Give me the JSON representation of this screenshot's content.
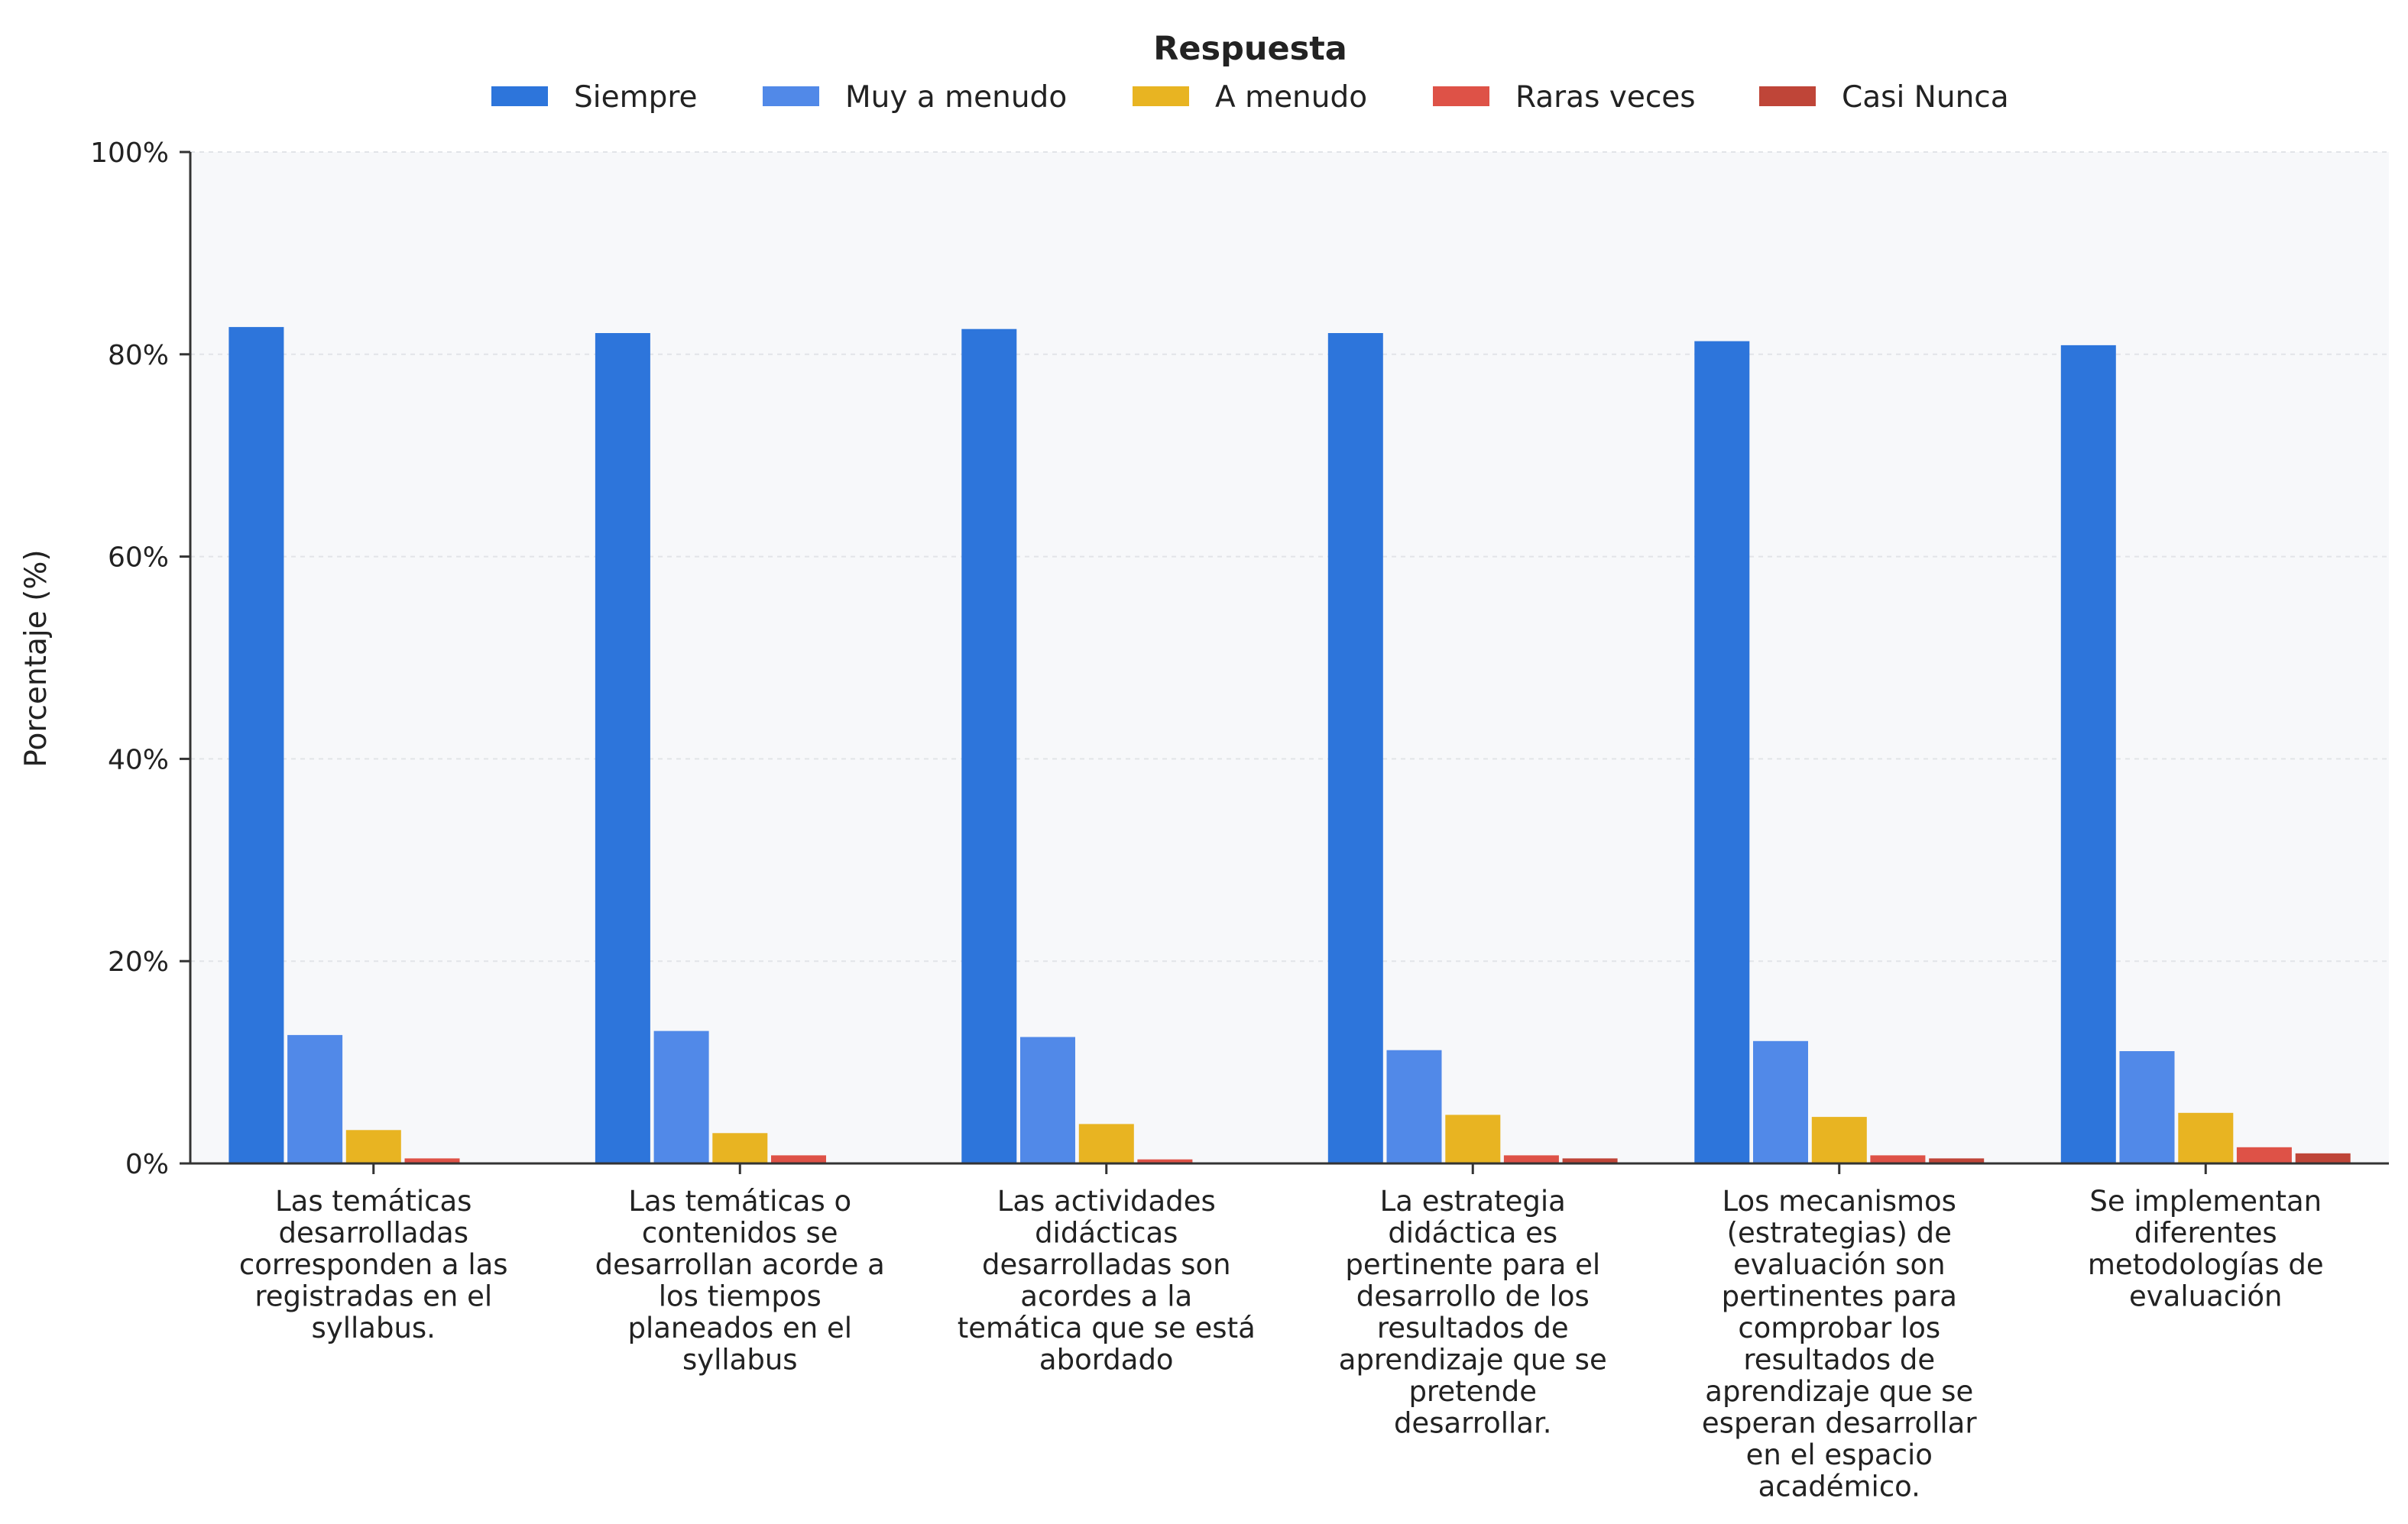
{
  "chart_data": {
    "type": "bar",
    "title": "",
    "xlabel": "",
    "ylabel": "Porcentaje (%)",
    "ylim": [
      0,
      100
    ],
    "y_ticks": [
      0,
      20,
      40,
      60,
      80,
      100
    ],
    "y_tick_format": "{v}%",
    "grid": true,
    "legend": {
      "title": "Respuesta",
      "placement": "top-center"
    },
    "categories": [
      "Las temáticas desarrolladas corresponden a las registradas en el syllabus.",
      "Las temáticas o contenidos se desarrollan acorde a los tiempos planeados en el syllabus",
      "Las actividades didácticas desarrolladas son acordes a la temática que se está abordado",
      "La estrategia didáctica es pertinente para el desarrollo de los resultados de aprendizaje que se pretende desarrollar.",
      "Los mecanismos (estrategias) de evaluación son pertinentes para comprobar los resultados de aprendizaje que se esperan desarrollar en el espacio académico.",
      "Se implementan diferentes metodologías de evaluación"
    ],
    "category_lines": [
      [
        "Las temáticas",
        "desarrolladas",
        "corresponden a las",
        "registradas en el",
        "syllabus."
      ],
      [
        "Las temáticas o",
        "contenidos se",
        "desarrollan acorde a",
        "los tiempos",
        "planeados en el",
        "syllabus"
      ],
      [
        "Las actividades",
        "didácticas",
        "desarrolladas son",
        "acordes a la",
        "temática que se está",
        "abordado"
      ],
      [
        "La estrategia",
        "didáctica es",
        "pertinente para el",
        "desarrollo de los",
        "resultados de",
        "aprendizaje que se",
        "pretende",
        "desarrollar."
      ],
      [
        "Los mecanismos",
        "(estrategias) de",
        "evaluación son",
        "pertinentes para",
        "comprobar los",
        "resultados de",
        "aprendizaje que se",
        "esperan desarrollar",
        "en el espacio",
        "académico."
      ],
      [
        "Se implementan",
        "diferentes",
        "metodologías de",
        "evaluación"
      ]
    ],
    "series": [
      {
        "name": "Siempre",
        "color": "#2D75DB",
        "values": [
          82.7,
          82.1,
          82.5,
          82.1,
          81.3,
          80.9
        ]
      },
      {
        "name": "Muy a menudo",
        "color": "#5189E8",
        "values": [
          12.7,
          13.1,
          12.5,
          11.2,
          12.1,
          11.1
        ]
      },
      {
        "name": "A menudo",
        "color": "#E8B422",
        "values": [
          3.3,
          3.0,
          3.9,
          4.8,
          4.6,
          5.0
        ]
      },
      {
        "name": "Raras veces",
        "color": "#DE5247",
        "values": [
          0.5,
          0.8,
          0.4,
          0.8,
          0.8,
          1.6
        ]
      },
      {
        "name": "Casi Nunca",
        "color": "#BF4538",
        "values": [
          0.1,
          0.1,
          0.1,
          0.5,
          0.5,
          1.0
        ]
      }
    ],
    "colors": {
      "plot_background": "#F7F8FA",
      "grid": "#E2E4E8",
      "axis": "#333333",
      "text": "#222222"
    }
  }
}
